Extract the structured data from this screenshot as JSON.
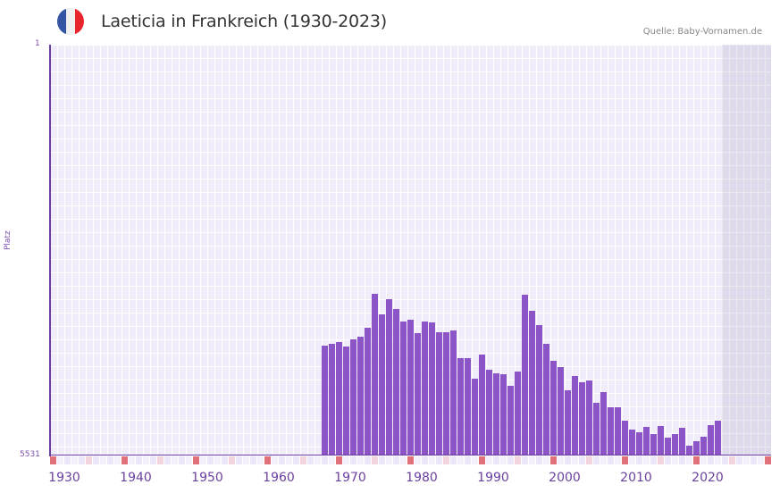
{
  "header": {
    "title": "Laeticia in Frankreich (1930-2023)",
    "source": "Quelle: Baby-Vornamen.de",
    "flag_colors": [
      "#3455a4",
      "#f0f0f0",
      "#e8242c"
    ]
  },
  "axes": {
    "y_top_label": "1",
    "y_bottom_label": "5531",
    "y_title": "Platz",
    "x_ticks": [
      "1930",
      "1940",
      "1950",
      "1960",
      "1970",
      "1980",
      "1990",
      "2000",
      "2010",
      "2020"
    ]
  },
  "colors": {
    "bar": "#8b55c8",
    "axis": "#6a3fa0",
    "plot_bg": "#f0ecfa",
    "marker_decade": "#e0707a",
    "marker_half": "#f2d4de"
  },
  "chart_data": {
    "type": "bar",
    "title": "Laeticia in Frankreich (1930-2023)",
    "xlabel": "",
    "ylabel": "Platz",
    "ylim": [
      5531,
      1
    ],
    "y_inverted": true,
    "note": "Bars grow upward from rank 5531 (baseline); taller bar = better (lower) rank",
    "x": [
      1966,
      1967,
      1968,
      1969,
      1970,
      1971,
      1972,
      1973,
      1974,
      1975,
      1976,
      1977,
      1978,
      1979,
      1980,
      1981,
      1982,
      1983,
      1984,
      1985,
      1986,
      1987,
      1988,
      1989,
      1990,
      1991,
      1992,
      1993,
      1994,
      1995,
      1996,
      1997,
      1998,
      1999,
      2000,
      2001,
      2002,
      2003,
      2004,
      2005,
      2006,
      2007,
      2008,
      2009,
      2010,
      2011,
      2012,
      2013,
      2014,
      2015,
      2016,
      2017,
      2018,
      2019,
      2020,
      2021
    ],
    "values": [
      4056,
      4032,
      4008,
      4068,
      3972,
      3936,
      3816,
      3357,
      3635,
      3430,
      3562,
      3731,
      3707,
      3888,
      3731,
      3743,
      3876,
      3876,
      3852,
      4225,
      4225,
      4502,
      4177,
      4381,
      4429,
      4441,
      4598,
      4405,
      3369,
      3586,
      3779,
      4032,
      4261,
      4345,
      4658,
      4466,
      4550,
      4526,
      4827,
      4682,
      4887,
      4887,
      5068,
      5188,
      5213,
      5152,
      5237,
      5140,
      5285,
      5237,
      5164,
      5394,
      5333,
      5273,
      5128,
      5068
    ],
    "grid": true,
    "legend": null
  }
}
